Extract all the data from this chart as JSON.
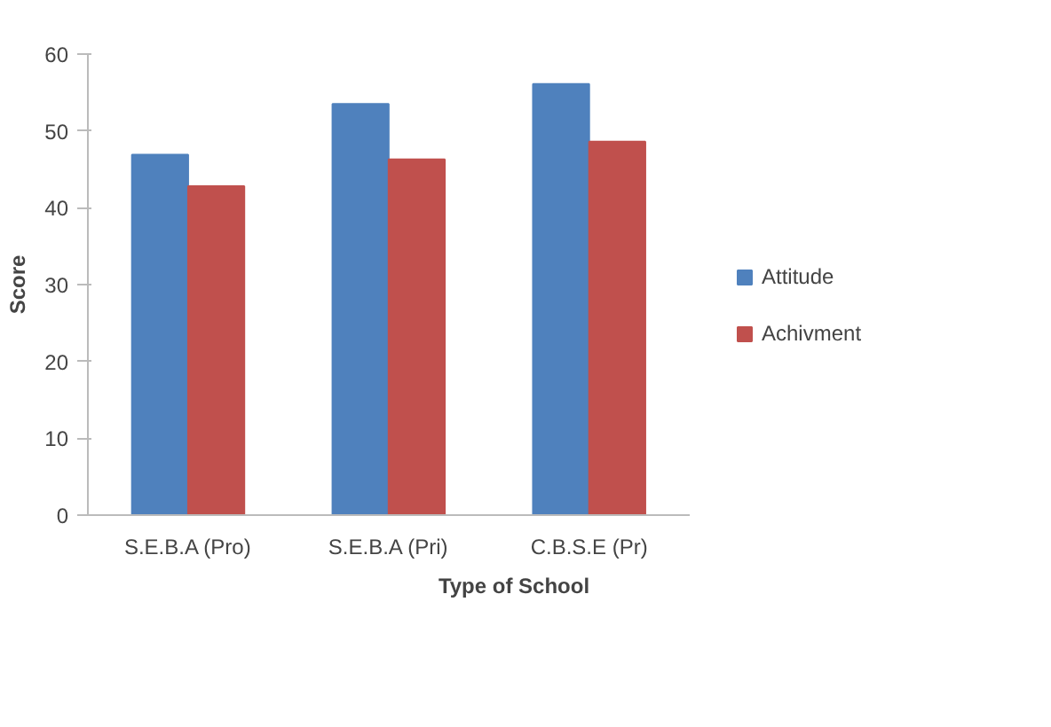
{
  "chart_data": {
    "type": "bar",
    "xlabel": "Type of School",
    "ylabel": "Score",
    "categories": [
      "S.E.B.A (Pro)",
      "S.E.B.A (Pri)",
      "C.B.S.E (Pr)"
    ],
    "series": [
      {
        "name": "Attitude",
        "color": "#4f81bd",
        "values": [
          46.9,
          53.5,
          56.1
        ]
      },
      {
        "name": "Achivment",
        "color": "#c0504d",
        "values": [
          42.8,
          46.3,
          48.6
        ]
      }
    ],
    "ylim": [
      0,
      60
    ],
    "yticks": [
      0,
      10,
      20,
      30,
      40,
      50,
      60
    ],
    "grid": false,
    "legend": "right"
  }
}
